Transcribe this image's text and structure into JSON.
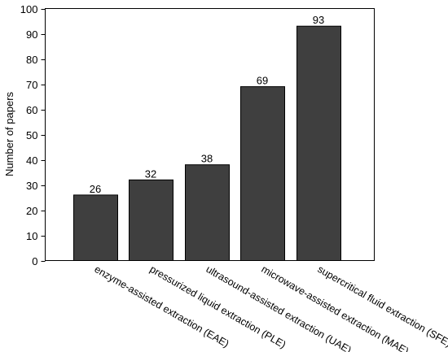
{
  "chart_data": {
    "type": "bar",
    "categories": [
      "enzyme-assisted extraction (EAE)",
      "pressurized liquid extraction (PLE)",
      "ultrasound-assisted extraction (UAE)",
      "microwave-assisted extraction (MAE)",
      "supercritical fluid extraction (SFE)"
    ],
    "values": [
      26,
      32,
      38,
      69,
      93
    ],
    "data_labels": [
      "26",
      "32",
      "38",
      "69",
      "93"
    ],
    "title": "",
    "xlabel": "",
    "ylabel": "Number of papers",
    "ylim": [
      0,
      100
    ],
    "yticks": [
      0,
      10,
      20,
      30,
      40,
      50,
      60,
      70,
      80,
      90,
      100
    ],
    "grid": false,
    "legend": "none",
    "bar_color": "#3f3f3f"
  }
}
